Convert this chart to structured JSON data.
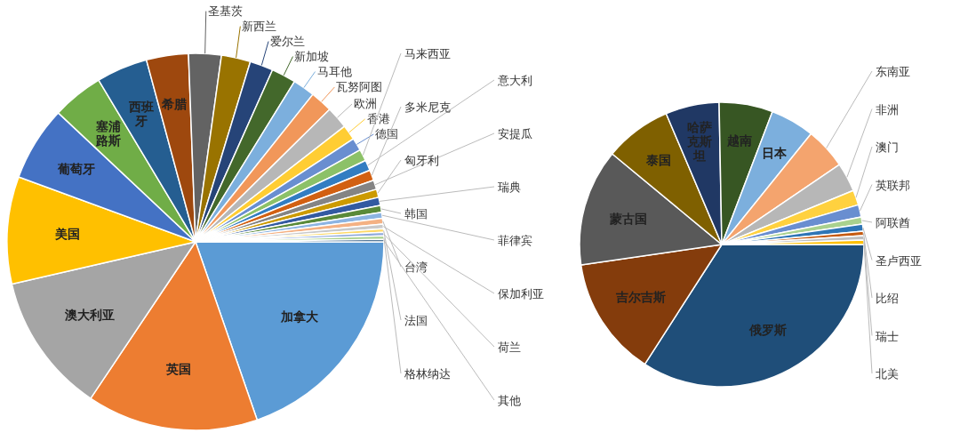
{
  "chart_data": [
    {
      "type": "pie",
      "categories": [
        "加拿大",
        "英国",
        "澳大利亚",
        "美国",
        "葡萄牙",
        "塞浦路斯",
        "西班牙",
        "希腊",
        "圣基茨",
        "新西兰",
        "爱尔兰",
        "新加坡",
        "马耳他",
        "瓦努阿图",
        "欧洲",
        "香港",
        "德国",
        "马来西亚",
        "意大利",
        "多米尼克",
        "安提瓜",
        "匈牙利",
        "瑞典",
        "韩国",
        "菲律宾",
        "台湾",
        "保加利亚",
        "法国",
        "荷兰",
        "格林纳达",
        "其他"
      ],
      "values": [
        19.7,
        14.7,
        12,
        9.2,
        6.4,
        4.4,
        4.4,
        3.6,
        2.8,
        2.5,
        2,
        2.1,
        1.9,
        1.9,
        1.9,
        1.3,
        1.1,
        1.0,
        0.9,
        0.9,
        0.8,
        0.7,
        0.7,
        0.6,
        0.5,
        0.5,
        0.4,
        0.3,
        0.3,
        0.3,
        0.2
      ],
      "colors": [
        "#5b9bd5",
        "#ed7d31",
        "#a5a5a5",
        "#ffc000",
        "#4472c4",
        "#70ad47",
        "#255e91",
        "#9e480e",
        "#636363",
        "#997300",
        "#264478",
        "#43682b",
        "#7cafdd",
        "#f1975a",
        "#b7b7b7",
        "#ffcd33",
        "#698ed0",
        "#8cc168",
        "#327dc2",
        "#d26012",
        "#848484",
        "#cc9a00",
        "#335aa1",
        "#5a8a39",
        "#8cb4e2",
        "#f4b183",
        "#c9c9c9",
        "#ffd966",
        "#8faadc",
        "#a9d18e",
        "#1f4e79"
      ]
    },
    {
      "type": "pie",
      "categories": [
        "俄罗斯",
        "吉尔吉斯",
        "蒙古国",
        "泰国",
        "哈萨克斯坦",
        "越南",
        "日本",
        "东南亚",
        "非洲",
        "澳门",
        "英联邦",
        "阿联酋",
        "圣卢西亚",
        "比绍",
        "瑞士",
        "北美"
      ],
      "values": [
        34.1,
        13.6,
        13.3,
        7.6,
        6.1,
        6.1,
        5.0,
        4.7,
        3.3,
        1.7,
        1.4,
        0.8,
        0.8,
        0.5,
        0.5,
        0.5
      ],
      "colors": [
        "#1f4e79",
        "#843c0c",
        "#595959",
        "#7f6000",
        "#203864",
        "#375623",
        "#7cafdd",
        "#f4a46e",
        "#b7b7b7",
        "#ffd13f",
        "#698ed0",
        "#a9d18e",
        "#2e75b6",
        "#c55a11",
        "#bfbfbf",
        "#ffc000"
      ]
    }
  ]
}
